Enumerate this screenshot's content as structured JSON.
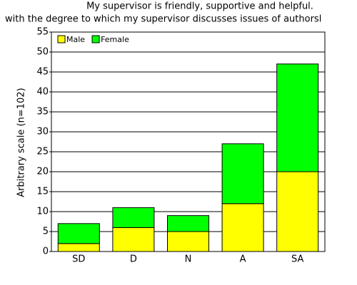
{
  "chart_data": {
    "type": "stacked_bar",
    "title": "My supervisor is friendly, supportive and helpful.",
    "subtitle": "with the degree to which my supervisor discusses issues of authorsl",
    "y_label": "Arbitrary scale (n=102)",
    "categories": [
      "SD",
      "D",
      "N",
      "A",
      "SA"
    ],
    "series": [
      {
        "name": "Male",
        "color": "#ffff00",
        "values": [
          2,
          6,
          5,
          12,
          20
        ]
      },
      {
        "name": "Female",
        "color": "#00ff00",
        "values": [
          5,
          5,
          4,
          15,
          27
        ]
      }
    ],
    "ylim": [
      0,
      55
    ],
    "yticks": [
      0,
      5,
      10,
      15,
      20,
      25,
      30,
      35,
      40,
      45,
      50,
      55
    ],
    "grid": true,
    "legend": "top-left"
  }
}
